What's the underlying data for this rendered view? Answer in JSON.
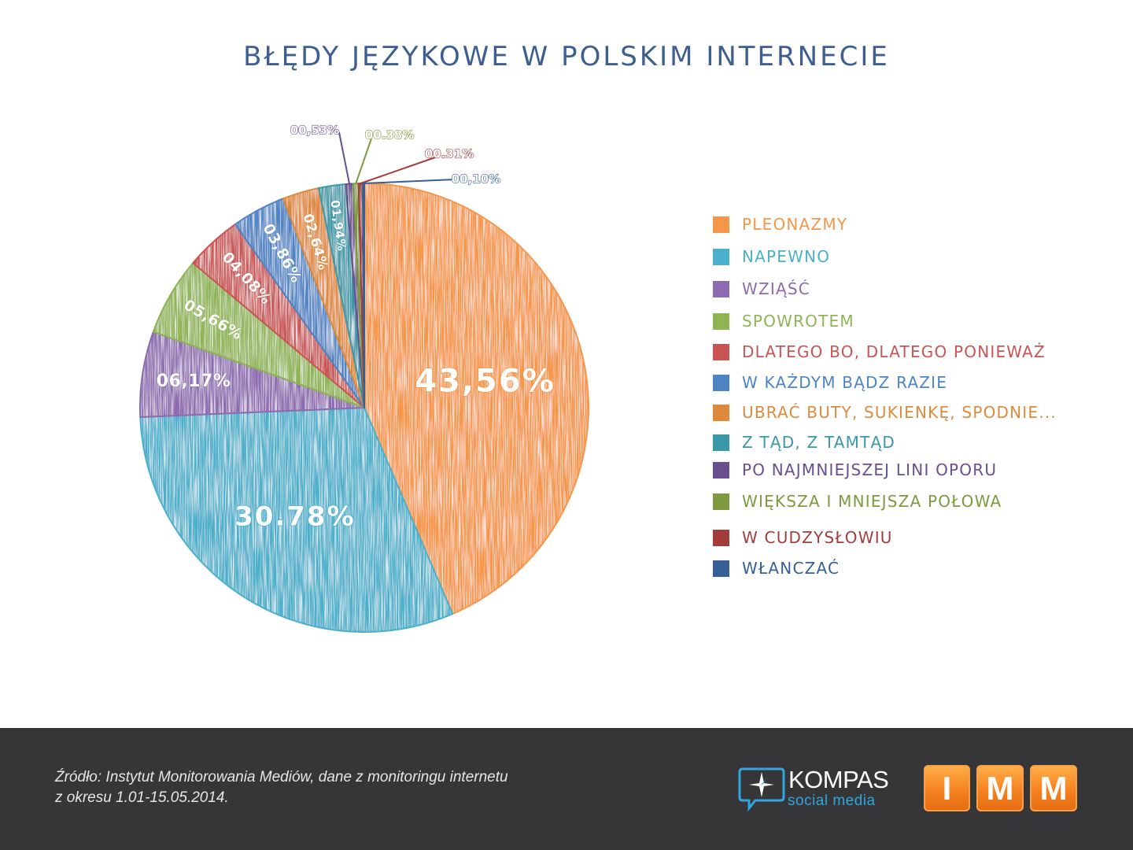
{
  "title": "BŁĘDY JĘZYKOWE W POLSKIM INTERNECIE",
  "chart_data": {
    "type": "pie",
    "title": "BŁĘDY JĘZYKOWE W POLSKIM INTERNECIE",
    "legend_position": "right",
    "slices": [
      {
        "label": "PLEONAZMY",
        "value": 43.56,
        "display": "43,56%",
        "color": "#f5974a"
      },
      {
        "label": "NAPEWNO",
        "value": 30.78,
        "display": "30.78%",
        "color": "#4bb0cb"
      },
      {
        "label": "WZIĄŚĆ",
        "value": 6.17,
        "display": "06,17%",
        "color": "#8e6bb0"
      },
      {
        "label": "SPOWROTEM",
        "value": 5.66,
        "display": "05,66%",
        "color": "#8fb453"
      },
      {
        "label": "DLATEGO BO, DLATEGO PONIEWAŻ",
        "value": 4.08,
        "display": "04,08%",
        "color": "#c95454"
      },
      {
        "label": "W KAŻDYM BĄDZ RAZIE",
        "value": 3.86,
        "display": "03,86%",
        "color": "#4d84c4"
      },
      {
        "label": "UBRAĆ BUTY, SUKIENKĘ, SPODNIE...",
        "value": 2.64,
        "display": "02,64%",
        "color": "#de8a3c"
      },
      {
        "label": "Z TĄD, Z TAMTĄD",
        "value": 1.94,
        "display": "01,94%",
        "color": "#3a98a8"
      },
      {
        "label": "PO NAJMNIEJSZEJ LINI OPORU",
        "value": 0.53,
        "display": "00,53%",
        "color": "#6a4f8e"
      },
      {
        "label": "WIĘKSZA I MNIEJSZA POŁOWA",
        "value": 0.38,
        "display": "00.38%",
        "color": "#7d9b3e"
      },
      {
        "label": "W CUDZYSŁOWIU",
        "value": 0.31,
        "display": "00.31%",
        "color": "#a33d3d"
      },
      {
        "label": "WŁANCZAĆ",
        "value": 0.1,
        "display": "00,10%",
        "color": "#365f96"
      }
    ]
  },
  "footer": {
    "source_line1": "Źródło: Instytut Monitorowania Mediów, dane z monitoringu internetu",
    "source_line2": "z okresu 1.01-15.05.2014.",
    "kompas_name": "KOMPAS",
    "kompas_sub": "social media",
    "imm_letters": [
      "I",
      "M",
      "M"
    ]
  }
}
